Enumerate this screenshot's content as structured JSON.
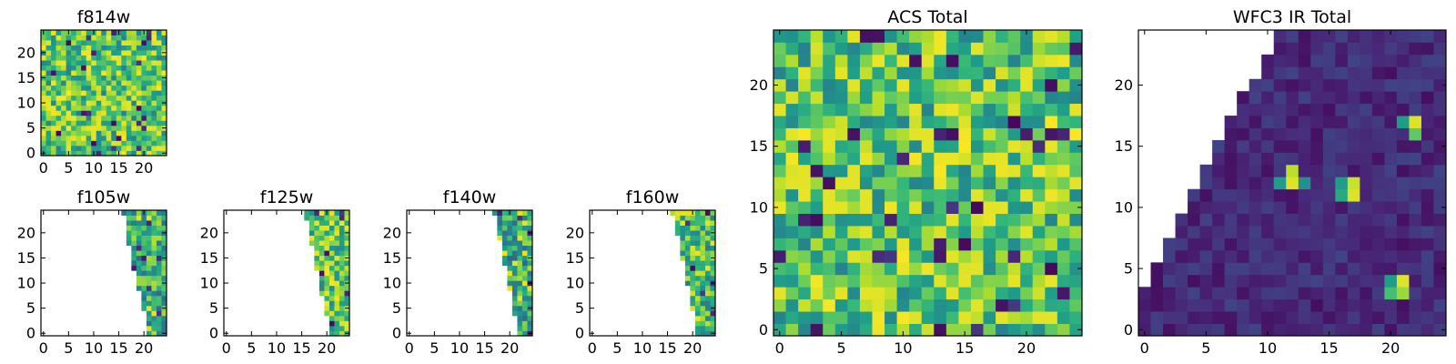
{
  "figure": {
    "background": "#ffffff",
    "colormap": "viridis"
  },
  "chart_data": [
    {
      "type": "heatmap",
      "title": "f814w",
      "xlabel": "",
      "ylabel": "",
      "xlim": [
        -0.5,
        24.5
      ],
      "ylim": [
        -0.5,
        24.5
      ],
      "xticks": [
        0,
        5,
        10,
        15,
        20
      ],
      "yticks": [
        0,
        5,
        10,
        15,
        20
      ],
      "grid": false,
      "coverage": "full",
      "seed": 11,
      "value_range": [
        0,
        1
      ],
      "typical_value": 0.72
    },
    {
      "type": "heatmap",
      "title": "f105w",
      "xlabel": "",
      "ylabel": "",
      "xlim": [
        -0.5,
        24.5
      ],
      "ylim": [
        -0.5,
        24.5
      ],
      "xticks": [
        0,
        5,
        10,
        15,
        20
      ],
      "yticks": [
        0,
        5,
        10,
        15,
        20
      ],
      "grid": false,
      "coverage": "right-wedge",
      "wedge_left_col": [
        21,
        21,
        21,
        21,
        21,
        20,
        20,
        20,
        20,
        19,
        19,
        19,
        19,
        18,
        18,
        18,
        18,
        18,
        17,
        17,
        17,
        17,
        17,
        17,
        16
      ],
      "seed": 23,
      "value_range": [
        0,
        1
      ],
      "typical_value": 0.62
    },
    {
      "type": "heatmap",
      "title": "f125w",
      "xlabel": "",
      "ylabel": "",
      "xlim": [
        -0.5,
        24.5
      ],
      "ylim": [
        -0.5,
        24.5
      ],
      "xticks": [
        0,
        5,
        10,
        15,
        20
      ],
      "yticks": [
        0,
        5,
        10,
        15,
        20
      ],
      "grid": false,
      "coverage": "right-wedge",
      "wedge_left_col": [
        21,
        21,
        21,
        21,
        20,
        20,
        20,
        20,
        19,
        19,
        19,
        19,
        19,
        18,
        18,
        18,
        18,
        18,
        17,
        17,
        17,
        17,
        17,
        16,
        16
      ],
      "seed": 37,
      "value_range": [
        0,
        1
      ],
      "typical_value": 0.72
    },
    {
      "type": "heatmap",
      "title": "f140w",
      "xlabel": "",
      "ylabel": "",
      "xlim": [
        -0.5,
        24.5
      ],
      "ylim": [
        -0.5,
        24.5
      ],
      "xticks": [
        0,
        5,
        10,
        15,
        20
      ],
      "yticks": [
        0,
        5,
        10,
        15,
        20
      ],
      "grid": false,
      "coverage": "right-wedge",
      "wedge_left_col": [
        22,
        22,
        22,
        22,
        21,
        21,
        21,
        21,
        21,
        20,
        20,
        20,
        20,
        20,
        19,
        19,
        19,
        19,
        19,
        18,
        18,
        18,
        18,
        18,
        17
      ],
      "seed": 41,
      "value_range": [
        0,
        1
      ],
      "typical_value": 0.6
    },
    {
      "type": "heatmap",
      "title": "f160w",
      "xlabel": "",
      "ylabel": "",
      "xlim": [
        -0.5,
        24.5
      ],
      "ylim": [
        -0.5,
        24.5
      ],
      "xticks": [
        0,
        5,
        10,
        15,
        20
      ],
      "yticks": [
        0,
        5,
        10,
        15,
        20
      ],
      "grid": false,
      "coverage": "right-wedge",
      "wedge_left_col": [
        21,
        21,
        21,
        21,
        21,
        20,
        20,
        20,
        20,
        20,
        19,
        19,
        19,
        19,
        19,
        18,
        18,
        18,
        18,
        18,
        17,
        17,
        17,
        17,
        16
      ],
      "seed": 53,
      "value_range": [
        0,
        1
      ],
      "typical_value": 0.7
    },
    {
      "type": "heatmap",
      "title": "ACS Total",
      "xlabel": "",
      "ylabel": "",
      "xlim": [
        -0.5,
        24.5
      ],
      "ylim": [
        -0.5,
        24.5
      ],
      "xticks": [
        0,
        5,
        10,
        15,
        20
      ],
      "yticks": [
        0,
        5,
        10,
        15,
        20
      ],
      "grid": false,
      "coverage": "full",
      "seed": 67,
      "value_range": [
        0,
        1
      ],
      "typical_value": 0.72
    },
    {
      "type": "heatmap",
      "title": "WFC3 IR Total",
      "xlabel": "",
      "ylabel": "",
      "xlim": [
        -0.5,
        24.5
      ],
      "ylim": [
        -0.5,
        24.5
      ],
      "xticks": [
        0,
        5,
        10,
        15,
        20
      ],
      "yticks": [
        0,
        5,
        10,
        15,
        20
      ],
      "grid": false,
      "coverage": "left-triangle",
      "triangle_left_col": [
        0,
        0,
        0,
        0,
        1,
        1,
        2,
        2,
        3,
        3,
        4,
        4,
        5,
        5,
        6,
        6,
        7,
        7,
        8,
        8,
        9,
        10,
        10,
        11,
        11
      ],
      "seed": 79,
      "value_range": [
        0,
        1
      ],
      "typical_value": 0.12,
      "hot_spots": [
        {
          "x": 12,
          "y": 12,
          "value": 0.95
        },
        {
          "x": 12,
          "y": 13,
          "value": 0.9
        },
        {
          "x": 11,
          "y": 12,
          "value": 0.55
        },
        {
          "x": 13,
          "y": 12,
          "value": 0.5
        },
        {
          "x": 17,
          "y": 11,
          "value": 0.95
        },
        {
          "x": 17,
          "y": 12,
          "value": 0.92
        },
        {
          "x": 16,
          "y": 11,
          "value": 0.6
        },
        {
          "x": 16,
          "y": 12,
          "value": 0.55
        },
        {
          "x": 22,
          "y": 17,
          "value": 0.95
        },
        {
          "x": 22,
          "y": 16,
          "value": 0.75
        },
        {
          "x": 21,
          "y": 17,
          "value": 0.55
        },
        {
          "x": 21,
          "y": 4,
          "value": 0.95
        },
        {
          "x": 21,
          "y": 3,
          "value": 0.85
        },
        {
          "x": 20,
          "y": 3,
          "value": 0.7
        },
        {
          "x": 20,
          "y": 4,
          "value": 0.55
        }
      ]
    }
  ]
}
